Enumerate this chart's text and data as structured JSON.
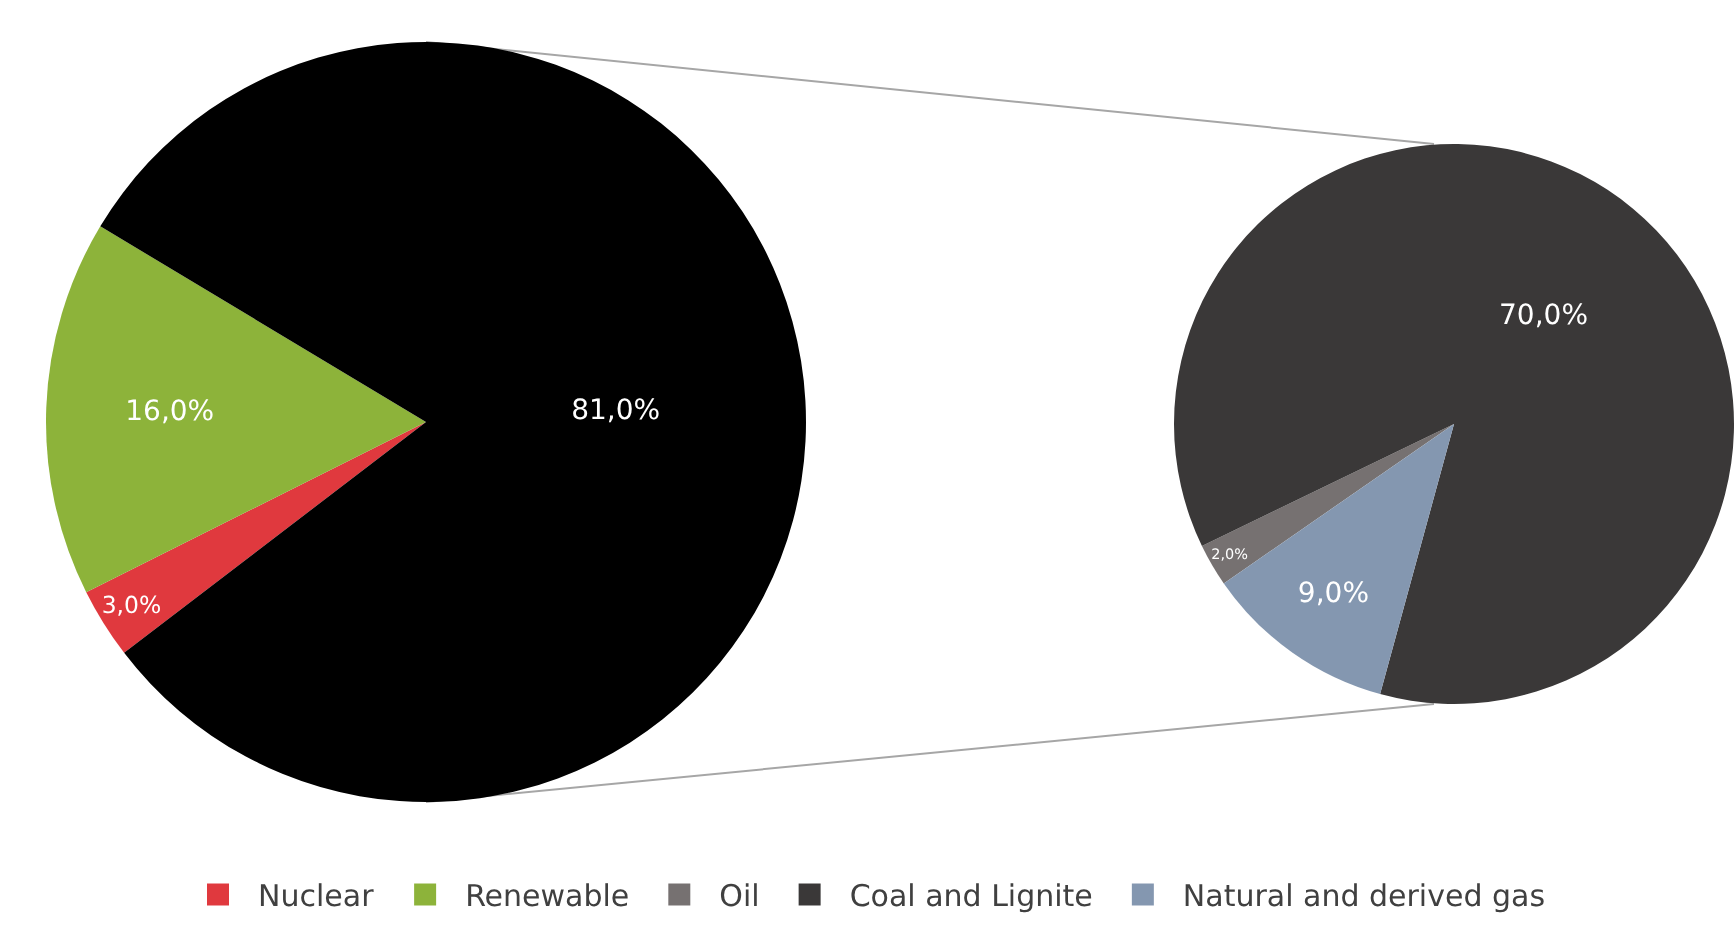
{
  "chart_data": [
    {
      "type": "pie",
      "categories": [
        "Nuclear",
        "Renewable",
        null
      ],
      "values": [
        3,
        16,
        81
      ],
      "colors": [
        "#e0393e",
        "#8db33a",
        "#000000"
      ],
      "value_labels": [
        "3,0%",
        "16,0%",
        "81,0%"
      ],
      "legend": "bottom"
    },
    {
      "type": "pie",
      "categories": [
        "Oil",
        "Coal and Lignite",
        "Natural and derived gas"
      ],
      "values": [
        2,
        70,
        9
      ],
      "colors": [
        "#767171",
        "#3a3838",
        "#8497b0"
      ],
      "value_labels": [
        "2,0%",
        "70,0%",
        "9,0%"
      ],
      "legend": "bottom"
    }
  ]
}
